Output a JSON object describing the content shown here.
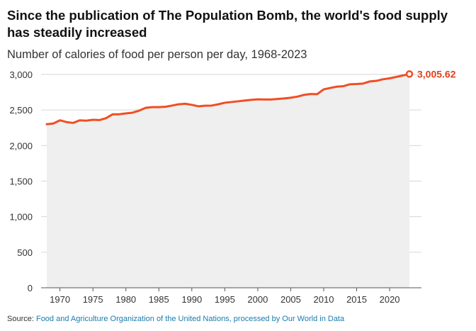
{
  "title": "Since the publication of The Population Bomb, the world's food supply has steadily increased",
  "subtitle": "Number of calories of food per person per day, 1968-2023",
  "source": {
    "prefix": "Source: ",
    "text": "Food and Agriculture Organization of the United Nations, processed by Our World in Data"
  },
  "colors": {
    "line": "#f04e23",
    "area": "#efefef",
    "accent": "#e0401a",
    "grid": "#d6d6d6",
    "link": "#1a7bb0"
  },
  "chart_data": {
    "type": "area",
    "title": "Since the publication of The Population Bomb, the world's food supply has steadily increased",
    "subtitle": "Number of calories of food per person per day, 1968-2023",
    "xlabel": "",
    "ylabel": "",
    "xlim": [
      1968,
      2023
    ],
    "ylim": [
      0,
      3000
    ],
    "grid": true,
    "x_ticks": [
      "1970",
      "1975",
      "1980",
      "1985",
      "1990",
      "1995",
      "2000",
      "2005",
      "2010",
      "2015",
      "2020"
    ],
    "y_ticks": [
      "0",
      "500",
      "1,000",
      "1,500",
      "2,000",
      "2,500",
      "3,000"
    ],
    "end_label": "3,005.62",
    "series": [
      {
        "x": [
          1968,
          1969,
          1970,
          1971,
          1972,
          1973,
          1974,
          1975,
          1976,
          1977,
          1978,
          1979,
          1980,
          1981,
          1982,
          1983,
          1984,
          1985,
          1986,
          1987,
          1988,
          1989,
          1990,
          1991,
          1992,
          1993,
          1994,
          1995,
          1996,
          1997,
          1998,
          1999,
          2000,
          2001,
          2002,
          2003,
          2004,
          2005,
          2006,
          2007,
          2008,
          2009,
          2010,
          2011,
          2012,
          2013,
          2014,
          2015,
          2016,
          2017,
          2018,
          2019,
          2020,
          2021,
          2022,
          2023
        ],
        "values": [
          2300,
          2310,
          2355,
          2330,
          2318,
          2355,
          2350,
          2362,
          2358,
          2385,
          2440,
          2440,
          2452,
          2462,
          2490,
          2530,
          2540,
          2540,
          2545,
          2562,
          2580,
          2588,
          2572,
          2552,
          2560,
          2562,
          2580,
          2602,
          2612,
          2622,
          2632,
          2642,
          2650,
          2648,
          2648,
          2655,
          2662,
          2672,
          2688,
          2712,
          2725,
          2722,
          2790,
          2810,
          2828,
          2835,
          2862,
          2865,
          2872,
          2902,
          2910,
          2932,
          2945,
          2965,
          2985,
          3005.62
        ]
      }
    ]
  }
}
